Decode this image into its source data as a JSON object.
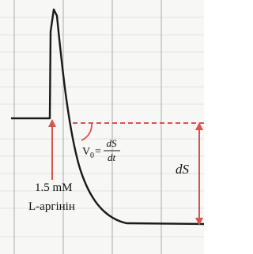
{
  "annotations": {
    "concentration": "1.5 mM",
    "substance": "L-аргінін",
    "rate_symbol": "V",
    "rate_subscript": "0",
    "equals_sign": "=",
    "rate_numerator": "dS",
    "rate_denominator": "dt",
    "delta_label": "dS"
  }
}
